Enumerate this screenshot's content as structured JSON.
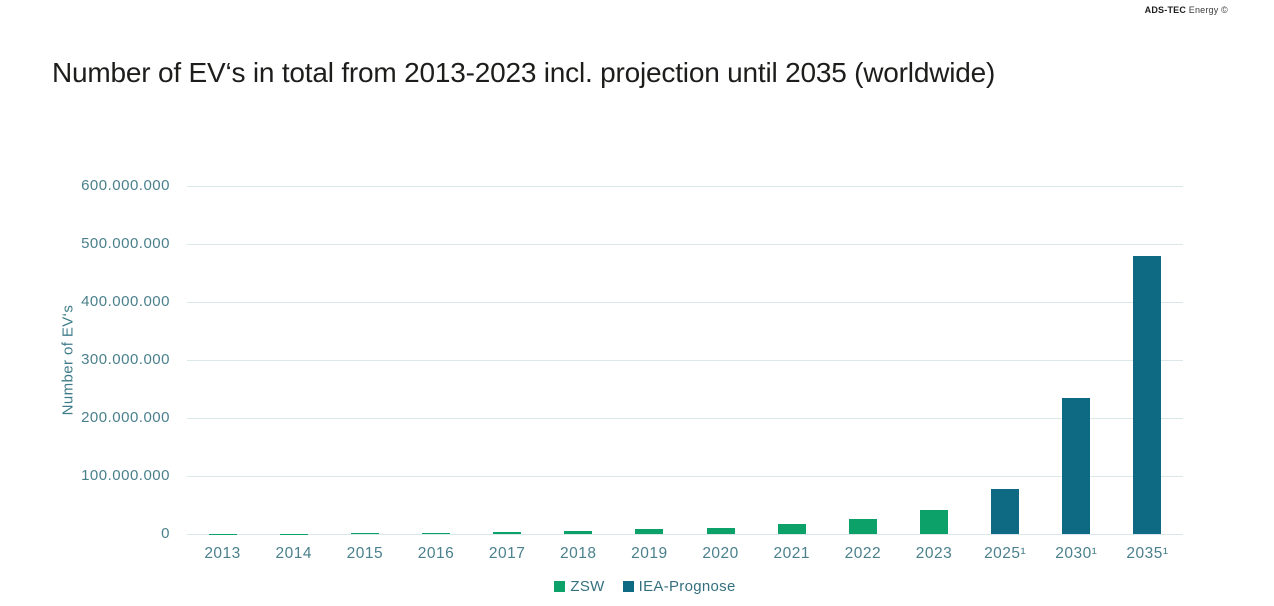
{
  "brand": {
    "bold": "ADS-TEC",
    "rest": " Energy ©"
  },
  "title": "Number of EV‘s in total from 2013-2023 incl. projection until 2035 (worldwide)",
  "colors": {
    "zsw_green": "#0ca168",
    "iea_teal": "#0e6a83",
    "axis_text": "#4a808c",
    "title_text": "#1d1d1b",
    "gridline": "#dbe8e9"
  },
  "chart_data": {
    "type": "bar",
    "title": "Number of EV‘s in total from 2013-2023 incl. projection until 2035 (worldwide)",
    "xlabel": "",
    "ylabel": "Number of EV‘s",
    "ylim": [
      0,
      600000000
    ],
    "grid": true,
    "legend_position": "bottom",
    "yticks": [
      {
        "value": 0,
        "label": "0"
      },
      {
        "value": 100000000,
        "label": "100.000.000"
      },
      {
        "value": 200000000,
        "label": "200.000.000"
      },
      {
        "value": 300000000,
        "label": "300.000.000"
      },
      {
        "value": 400000000,
        "label": "400.000.000"
      },
      {
        "value": 500000000,
        "label": "500.000.000"
      },
      {
        "value": 600000000,
        "label": "600.000.000"
      }
    ],
    "categories": [
      "2013",
      "2014",
      "2015",
      "2016",
      "2017",
      "2018",
      "2019",
      "2020",
      "2021",
      "2022",
      "2023",
      "2025¹",
      "2030¹",
      "2035¹"
    ],
    "series": [
      {
        "name": "ZSW",
        "color": "#0ca168",
        "values": [
          400000,
          800000,
          1300000,
          2000000,
          3200000,
          5600000,
          7900000,
          10900000,
          16500000,
          26000000,
          42000000,
          null,
          null,
          null
        ]
      },
      {
        "name": "IEA-Prognose",
        "color": "#0e6a83",
        "values": [
          null,
          null,
          null,
          null,
          null,
          null,
          null,
          null,
          null,
          null,
          null,
          77000000,
          235000000,
          480000000
        ]
      }
    ]
  }
}
